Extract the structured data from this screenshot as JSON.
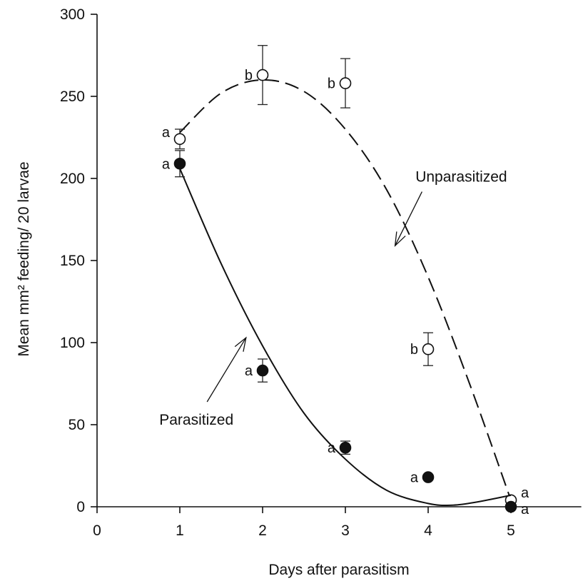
{
  "chart_data": {
    "type": "scatter",
    "xlabel": "Days after parasitism",
    "ylabel": "Mean mm² feeding/ 20 larvae",
    "xlim": [
      0,
      5.85
    ],
    "ylim": [
      0,
      300
    ],
    "x_ticks": [
      0,
      1,
      2,
      3,
      4,
      5
    ],
    "y_ticks": [
      0,
      50,
      100,
      150,
      200,
      250,
      300
    ],
    "series": [
      {
        "name": "Unparasitized",
        "marker": "open-circle",
        "line_style": "dashed",
        "points": [
          {
            "x": 1,
            "y": 224,
            "err": 6,
            "letter": "a"
          },
          {
            "x": 2,
            "y": 263,
            "err": 18,
            "letter": "b"
          },
          {
            "x": 3,
            "y": 258,
            "err": 15,
            "letter": "b"
          },
          {
            "x": 4,
            "y": 96,
            "err": 10,
            "letter": "b"
          },
          {
            "x": 5,
            "y": 4,
            "err": 0,
            "letter": "a"
          }
        ],
        "fit": [
          [
            1,
            228
          ],
          [
            1.5,
            252
          ],
          [
            2,
            260
          ],
          [
            2.5,
            253
          ],
          [
            3,
            230
          ],
          [
            3.5,
            193
          ],
          [
            4,
            140
          ],
          [
            4.5,
            75
          ],
          [
            5,
            4
          ]
        ]
      },
      {
        "name": "Parasitized",
        "marker": "filled-circle",
        "line_style": "solid",
        "points": [
          {
            "x": 1,
            "y": 209,
            "err": 8,
            "letter": "a"
          },
          {
            "x": 2,
            "y": 83,
            "err": 7,
            "letter": "a"
          },
          {
            "x": 3,
            "y": 36,
            "err": 4,
            "letter": "a"
          },
          {
            "x": 4,
            "y": 18,
            "err": 0,
            "letter": "a"
          },
          {
            "x": 5,
            "y": 0,
            "err": 0,
            "letter": "a"
          }
        ],
        "fit": [
          [
            1,
            206
          ],
          [
            1.5,
            148
          ],
          [
            2,
            98
          ],
          [
            2.5,
            57
          ],
          [
            3,
            29
          ],
          [
            3.5,
            10
          ],
          [
            4,
            2
          ],
          [
            4.3,
            1
          ],
          [
            4.6,
            3
          ],
          [
            5,
            7
          ]
        ]
      }
    ],
    "annotations": [
      {
        "text": "Unparasitized",
        "at": [
          4.4,
          198
        ],
        "arrow_to": [
          3.6,
          159
        ]
      },
      {
        "text": "Parasitized",
        "at": [
          1.2,
          50
        ],
        "arrow_to": [
          1.8,
          103
        ]
      }
    ]
  }
}
